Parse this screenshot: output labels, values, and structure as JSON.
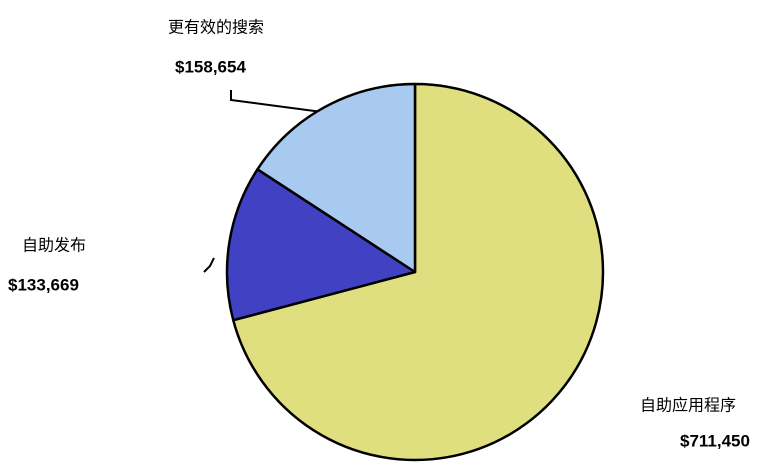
{
  "chart_data": {
    "type": "pie",
    "categories": [
      "自助应用程序",
      "自助发布",
      "更有效的搜索"
    ],
    "values": [
      711450,
      133669,
      158654
    ],
    "value_labels": [
      "$711,450",
      "$133,669",
      "$158,654"
    ],
    "colors": [
      "#dfdf80",
      "#4141c3",
      "#a8caf0"
    ]
  }
}
